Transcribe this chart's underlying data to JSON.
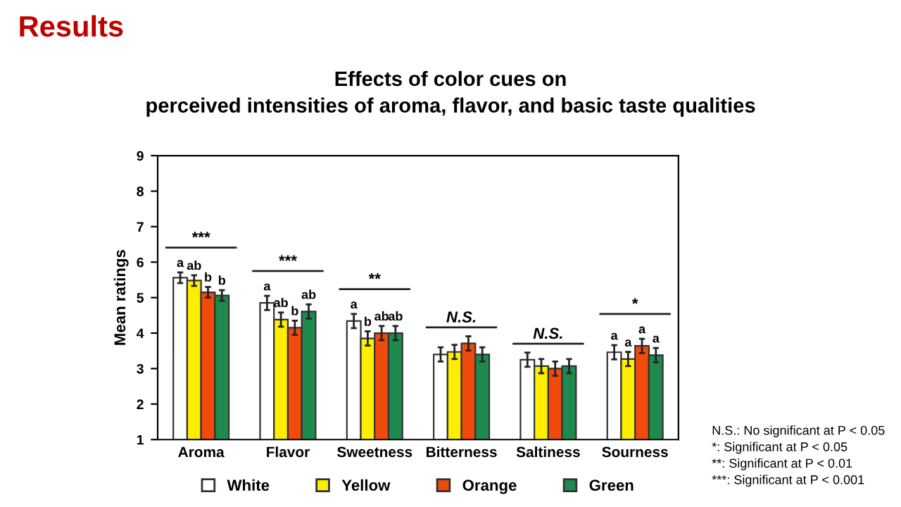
{
  "chart_data": {
    "type": "bar",
    "title": "Results",
    "subtitle": "Effects of color cues on\nperceived intensities of aroma, flavor, and basic taste qualities",
    "ylabel": "Mean ratings",
    "categories": [
      "Aroma",
      "Flavor",
      "Sweetness",
      "Bitterness",
      "Saltiness",
      "Sourness"
    ],
    "series": [
      {
        "name": "White",
        "color": "#ffffff",
        "values": [
          5.56,
          4.85,
          4.34,
          3.4,
          3.25,
          3.46
        ],
        "errors": [
          0.15,
          0.2,
          0.2,
          0.2,
          0.2,
          0.2
        ],
        "value_labels": [
          "a",
          "a",
          "a",
          null,
          null,
          "a"
        ]
      },
      {
        "name": "Yellow",
        "color": "#ffee00",
        "values": [
          5.48,
          4.38,
          3.85,
          3.47,
          3.07,
          3.27
        ],
        "errors": [
          0.15,
          0.2,
          0.2,
          0.2,
          0.2,
          0.2
        ],
        "value_labels": [
          "ab",
          "ab",
          "b",
          null,
          null,
          "a"
        ]
      },
      {
        "name": "Orange",
        "color": "#f04a0c",
        "values": [
          5.15,
          4.15,
          4.0,
          3.71,
          3.0,
          3.64
        ],
        "errors": [
          0.15,
          0.2,
          0.2,
          0.2,
          0.2,
          0.2
        ],
        "value_labels": [
          "b",
          "b",
          "ab",
          null,
          null,
          "a"
        ]
      },
      {
        "name": "Green",
        "color": "#1e8a4e",
        "values": [
          5.06,
          4.61,
          4.0,
          3.4,
          3.07,
          3.38
        ],
        "errors": [
          0.15,
          0.2,
          0.2,
          0.2,
          0.2,
          0.2
        ],
        "value_labels": [
          "b",
          "ab",
          "ab",
          null,
          null,
          "a"
        ]
      }
    ],
    "ylim": [
      1,
      9
    ],
    "yticks": [
      1,
      2,
      3,
      4,
      5,
      6,
      7,
      8,
      9
    ],
    "grid": false,
    "legend": "bottom",
    "annotations": [
      "***",
      "***",
      "**",
      "N.S.",
      "N.S.",
      "*",
      "N.S.: No significant at P < 0.05\n*: Significant at P < 0.05\n**: Significant at P < 0.01\n***: Significant at P < 0.001"
    ]
  }
}
